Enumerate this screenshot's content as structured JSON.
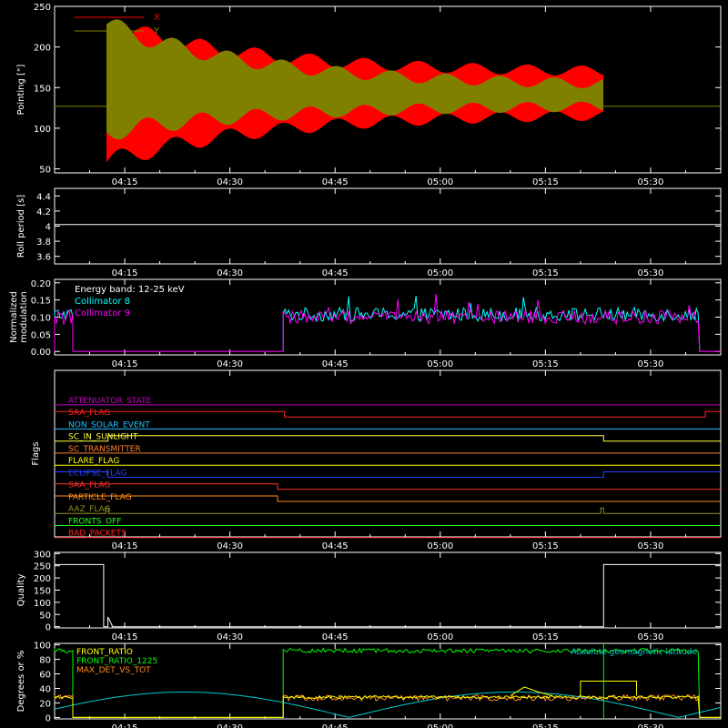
{
  "time_axis": {
    "tick_labels": [
      "04:15",
      "04:30",
      "04:45",
      "05:00",
      "05:15",
      "05:30"
    ],
    "tick_minutes": [
      255,
      270,
      285,
      300,
      315,
      330
    ],
    "range_minutes": [
      245,
      340
    ]
  },
  "colors": {
    "background": "#000000",
    "axes": "#ffffff",
    "pointing_x": "#ff0000",
    "pointing_y": "#808000",
    "collimator_8": "#00ffff",
    "collimator_9": "#ff00ff",
    "front_ratio": "#ffff00",
    "front_ratio_1225": "#00ff00",
    "max_det_vs_tot": "#ff8c1a",
    "geomag_latitude": "#00cccc"
  },
  "chart_data": [
    {
      "id": "pointing",
      "type": "line",
      "ylabel": "Pointing [\"]",
      "ylim": [
        45,
        250
      ],
      "y_ticks": [
        50,
        100,
        150,
        200,
        250
      ],
      "legend": [
        "X",
        "Y"
      ],
      "baseline_value": 127,
      "active_minutes": [
        252.4,
        323.3
      ],
      "series": [
        {
          "name": "X",
          "envelope_start": [
            58,
            228
          ],
          "envelope_end": [
            118,
            168
          ],
          "phase": "anti"
        },
        {
          "name": "Y",
          "envelope_start": [
            95,
            228
          ],
          "envelope_end": [
            128,
            152
          ],
          "phase": "in"
        }
      ]
    },
    {
      "id": "roll",
      "type": "line",
      "ylabel": "Roll period [s]",
      "ylim": [
        3.5,
        4.5
      ],
      "y_ticks": [
        3.6,
        3.8,
        4.0,
        4.2,
        4.4
      ],
      "series": [
        {
          "name": "",
          "x": [
            245,
            340
          ],
          "values": [
            4.02,
            4.02
          ]
        }
      ]
    },
    {
      "id": "modulation",
      "type": "line",
      "ylabel_lines": [
        "Normalized",
        "modulation"
      ],
      "ylim": [
        -0.01,
        0.21
      ],
      "y_ticks": [
        0.0,
        0.05,
        0.1,
        0.15,
        0.2
      ],
      "y_tick_labels": [
        "0.00",
        "0.05",
        "0.10",
        "0.15",
        "0.20"
      ],
      "annotations": [
        "Energy band: 12-25 keV",
        "Collimator 8",
        "Collimator 9"
      ],
      "series": [
        {
          "name": "Collimator 8",
          "segments": [
            [
              245,
              247.6
            ],
            [
              277.6,
              337.0
            ]
          ],
          "mean": 0.108
        },
        {
          "name": "Collimator 9",
          "segments": [
            [
              245,
              247.6
            ],
            [
              277.6,
              337.0
            ]
          ],
          "mean": 0.1
        }
      ]
    },
    {
      "id": "flags",
      "type": "line",
      "ylabel": "Flags",
      "rows": [
        {
          "label": "ATTENUATOR_STATE",
          "color": "#c000c0",
          "steps": [
            [
              245,
              0
            ]
          ]
        },
        {
          "label": "SAA_FLAG",
          "color": "#ff2020",
          "steps": [
            [
              245,
              1
            ],
            [
              277.8,
              0
            ],
            [
              337.8,
              1
            ]
          ]
        },
        {
          "label": "NON_SOLAR_EVENT",
          "color": "#20c0ff",
          "steps": [
            [
              245,
              0
            ]
          ]
        },
        {
          "label": "SC_IN_SUNLIGHT",
          "color": "#ffff40",
          "steps": [
            [
              245,
              0
            ],
            [
              252.6,
              1
            ],
            [
              323.3,
              0
            ]
          ]
        },
        {
          "label": "SC_TRANSMITTER",
          "color": "#ff8030",
          "steps": [
            [
              245,
              0
            ]
          ]
        },
        {
          "label": "FLARE_FLAG",
          "color": "#ffff00",
          "steps": [
            [
              245,
              0
            ]
          ]
        },
        {
          "label": "ECLIPSE_FLAG",
          "color": "#2040ff",
          "steps": [
            [
              245,
              1
            ],
            [
              252.6,
              0
            ],
            [
              323.3,
              1
            ]
          ]
        },
        {
          "label": "SAA_FLAG",
          "color": "#ff3030",
          "steps": [
            [
              245,
              1
            ],
            [
              276.8,
              0
            ]
          ]
        },
        {
          "label": "PARTICLE_FLAG",
          "color": "#ff8c1a",
          "steps": [
            [
              245,
              1
            ],
            [
              276.8,
              0
            ]
          ]
        },
        {
          "label": "AAZ_FLAG",
          "color": "#909020",
          "steps": [
            [
              245,
              0
            ],
            [
              252.3,
              1
            ],
            [
              252.7,
              0
            ],
            [
              322.9,
              1
            ],
            [
              323.3,
              0
            ]
          ]
        },
        {
          "label": "FRONTS_OFF",
          "color": "#20ff20",
          "steps": [
            [
              245,
              0
            ]
          ]
        },
        {
          "label": "BAD_PACKETS",
          "color": "#ff2020",
          "steps": [
            [
              245,
              0
            ]
          ]
        }
      ]
    },
    {
      "id": "quality",
      "type": "line",
      "ylabel": "Quality",
      "ylim": [
        -5,
        305
      ],
      "y_ticks": [
        0,
        50,
        100,
        150,
        200,
        250,
        300
      ],
      "series": [
        {
          "name": "",
          "x": [
            245,
            252.0,
            252.0,
            252.6,
            252.6,
            253.2,
            253.2,
            323.3,
            323.3,
            340
          ],
          "values": [
            255,
            255,
            0,
            0,
            40,
            5,
            0,
            0,
            255,
            255
          ]
        }
      ]
    },
    {
      "id": "degrees",
      "type": "line",
      "ylabel": "Degrees or %",
      "ylim": [
        -2,
        102
      ],
      "y_ticks": [
        0,
        20,
        40,
        60,
        80,
        100
      ],
      "legend": [
        "FRONT_RATIO",
        "FRONT_RATIO_1225",
        "MAX_DET_VS_TOT"
      ],
      "annotation": "Absolute geomagnetic latitude",
      "series": [
        {
          "name": "FRONT_RATIO",
          "mean": 28
        },
        {
          "name": "FRONT_RATIO_1225",
          "mean": 92
        },
        {
          "name": "MAX_DET_VS_TOT",
          "mean": 27
        },
        {
          "name": "Absolute geomagnetic latitude",
          "peak": 35
        }
      ]
    }
  ]
}
